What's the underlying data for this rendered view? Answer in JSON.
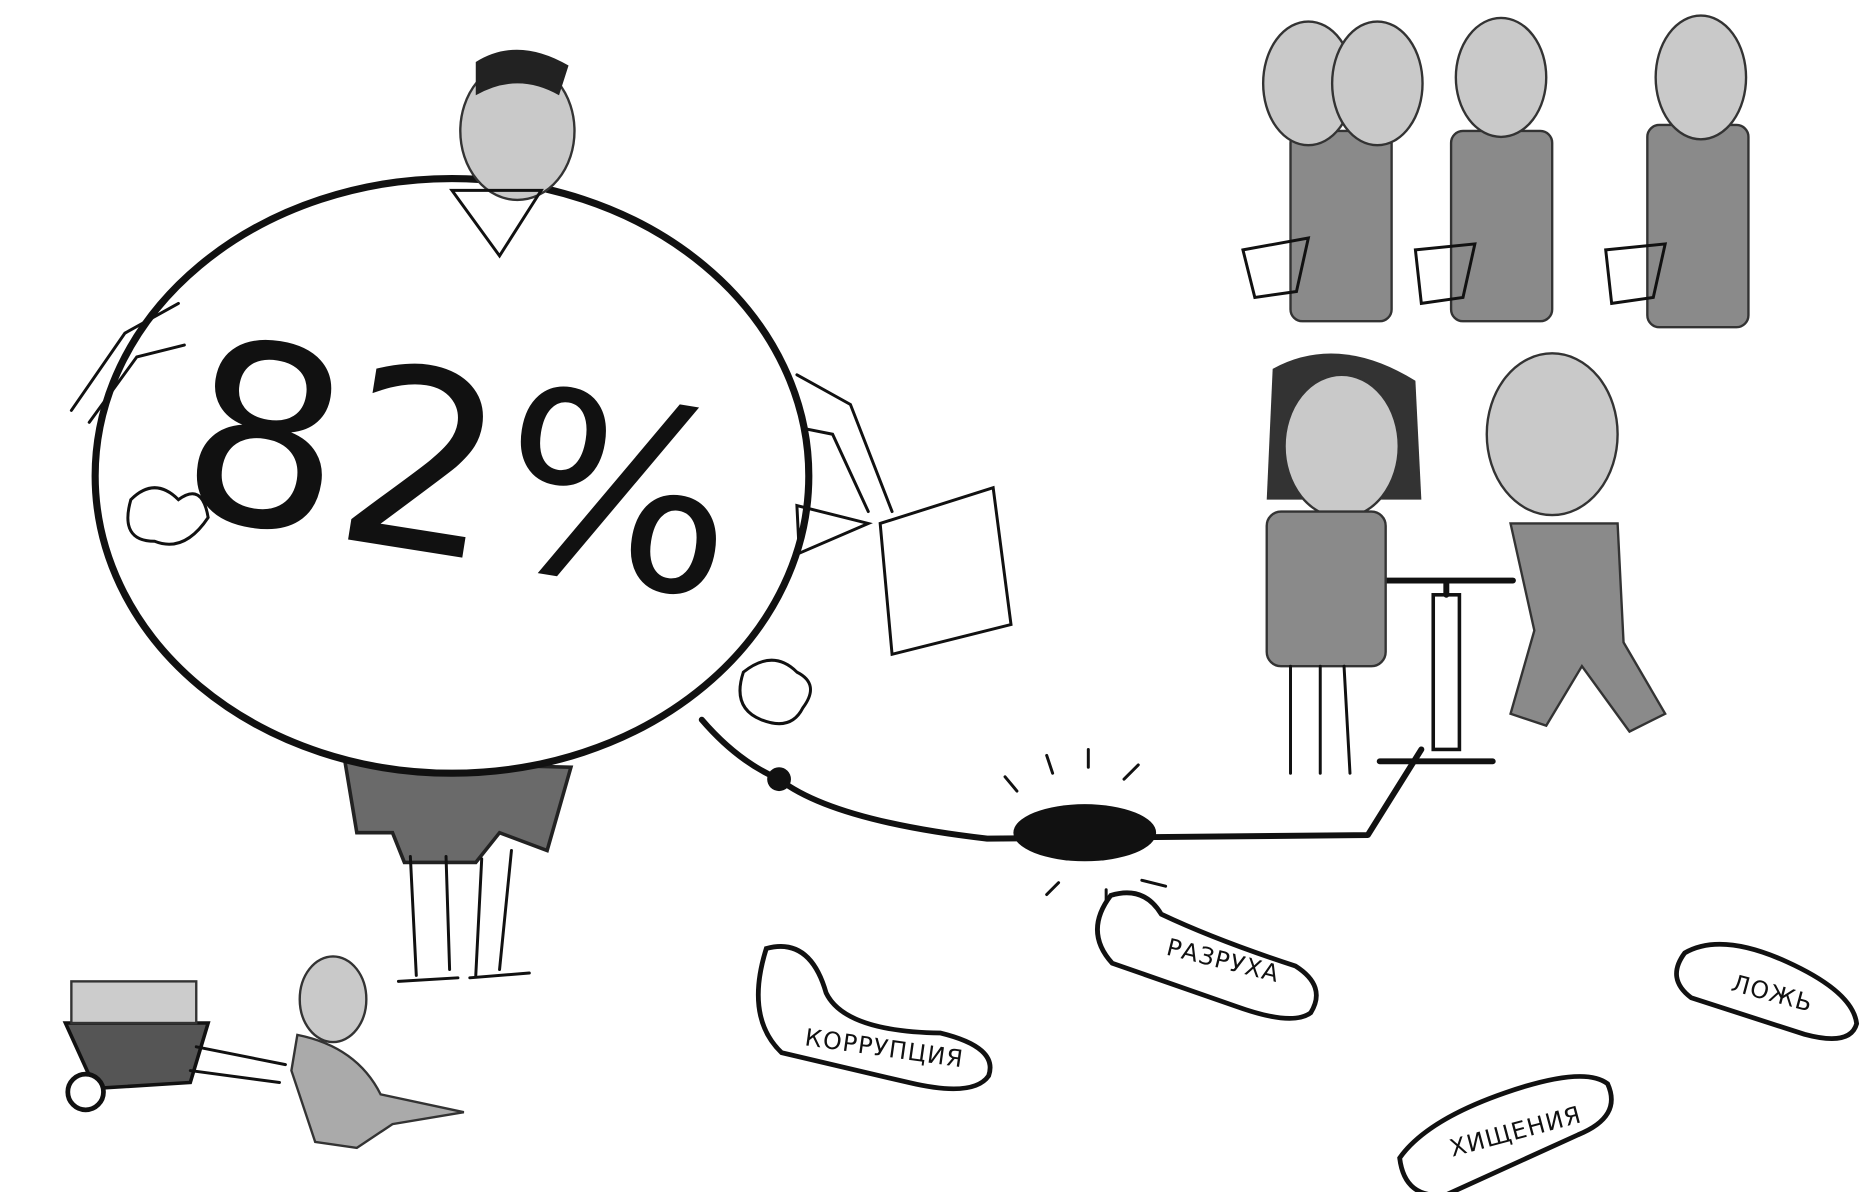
{
  "balloon": {
    "label": "82%"
  },
  "footprints": [
    {
      "label": "КОРРУПЦИЯ"
    },
    {
      "label": "РАЗРУХА"
    },
    {
      "label": "ХИЩЕНИЯ"
    },
    {
      "label": "ЛОЖЬ"
    }
  ]
}
